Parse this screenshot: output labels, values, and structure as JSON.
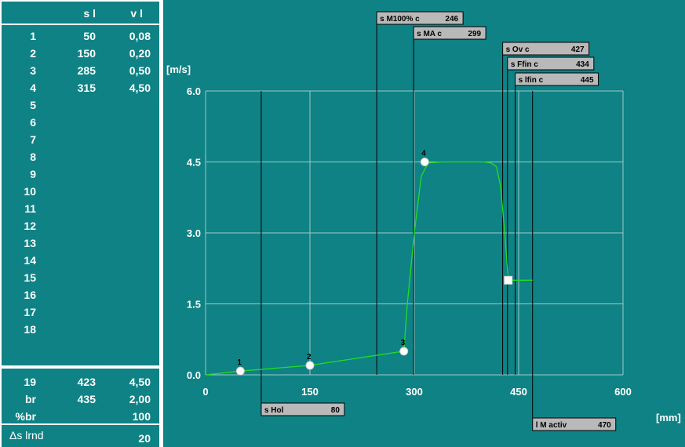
{
  "table": {
    "header": {
      "s": "s l",
      "v": "v l"
    },
    "rows": [
      {
        "idx": "1",
        "s": "50",
        "v": "0,08"
      },
      {
        "idx": "2",
        "s": "150",
        "v": "0,20"
      },
      {
        "idx": "3",
        "s": "285",
        "v": "0,50"
      },
      {
        "idx": "4",
        "s": "315",
        "v": "4,50"
      },
      {
        "idx": "5",
        "s": "",
        "v": ""
      },
      {
        "idx": "6",
        "s": "",
        "v": ""
      },
      {
        "idx": "7",
        "s": "",
        "v": ""
      },
      {
        "idx": "8",
        "s": "",
        "v": ""
      },
      {
        "idx": "9",
        "s": "",
        "v": ""
      },
      {
        "idx": "10",
        "s": "",
        "v": ""
      },
      {
        "idx": "11",
        "s": "",
        "v": ""
      },
      {
        "idx": "12",
        "s": "",
        "v": ""
      },
      {
        "idx": "13",
        "s": "",
        "v": ""
      },
      {
        "idx": "14",
        "s": "",
        "v": ""
      },
      {
        "idx": "15",
        "s": "",
        "v": ""
      },
      {
        "idx": "16",
        "s": "",
        "v": ""
      },
      {
        "idx": "17",
        "s": "",
        "v": ""
      },
      {
        "idx": "18",
        "s": "",
        "v": ""
      }
    ],
    "extra": [
      {
        "label": "19",
        "s": "423",
        "v": "4,50"
      },
      {
        "label": "br",
        "s": "435",
        "v": "2,00"
      },
      {
        "label": "%br",
        "s": "",
        "v": "100"
      }
    ],
    "lrnd": {
      "label": "Δs lrnd",
      "value": "20"
    }
  },
  "colors": {
    "background": "#0f8285",
    "grid": "#9fc8c9",
    "curve": "#22dd22",
    "tag": "#b9b9b9"
  },
  "chart_data": {
    "type": "line",
    "x_unit": "[mm]",
    "y_unit": "[m/s]",
    "xlim": [
      0,
      600
    ],
    "ylim": [
      0,
      6
    ],
    "x_ticks": [
      "0",
      "150",
      "300",
      "450",
      "600"
    ],
    "y_ticks": [
      "0.0",
      "1.5",
      "3.0",
      "4.5",
      "6.0"
    ],
    "points": [
      {
        "label": "1",
        "x": 50,
        "y": 0.08
      },
      {
        "label": "2",
        "x": 150,
        "y": 0.2
      },
      {
        "label": "3",
        "x": 285,
        "y": 0.5
      },
      {
        "label": "4",
        "x": 315,
        "y": 4.5
      }
    ],
    "brake_point": {
      "x": 435,
      "y": 2.0
    },
    "curve": [
      [
        0,
        0
      ],
      [
        50,
        0.08
      ],
      [
        150,
        0.2
      ],
      [
        285,
        0.5
      ],
      [
        290,
        1.5
      ],
      [
        300,
        3.0
      ],
      [
        310,
        4.2
      ],
      [
        320,
        4.48
      ],
      [
        340,
        4.5
      ],
      [
        400,
        4.5
      ],
      [
        410,
        4.48
      ],
      [
        418,
        4.4
      ],
      [
        424,
        4.0
      ],
      [
        430,
        3.0
      ],
      [
        433,
        2.4
      ],
      [
        435,
        2.0
      ],
      [
        470,
        2.0
      ]
    ],
    "markers": [
      {
        "label": "s M100% c",
        "value": "246",
        "x": 246
      },
      {
        "label": "s MA   c",
        "value": "299",
        "x": 299
      },
      {
        "label": "s Ov   c",
        "value": "427",
        "x": 427
      },
      {
        "label": "s Ffin  c",
        "value": "434",
        "x": 434
      },
      {
        "label": "s lfin  c",
        "value": "445",
        "x": 445
      },
      {
        "label": "s Hol",
        "value": "80",
        "x": 80
      },
      {
        "label": "l M activ",
        "value": "470",
        "x": 470
      }
    ]
  }
}
